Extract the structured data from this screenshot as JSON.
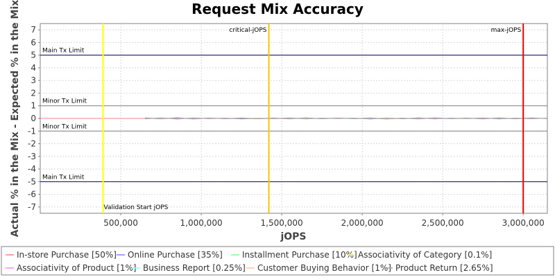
{
  "chart_data": {
    "type": "line",
    "title": "Request Mix Accuracy",
    "xlabel": "jOPS",
    "ylabel": "Actual % in the Mix - Expected % in the Mix",
    "xlim": [
      0,
      3150000
    ],
    "ylim": [
      -7.5,
      7.5
    ],
    "x_ticks": [
      500000,
      1000000,
      1500000,
      2000000,
      2500000,
      3000000
    ],
    "x_tick_labels": [
      "500,000",
      "1,000,000",
      "1,500,000",
      "2,000,000",
      "2,500,000",
      "3,000,000"
    ],
    "y_ticks": [
      7,
      6,
      5,
      4,
      3,
      2,
      1,
      0,
      -1,
      -2,
      -3,
      -4,
      -5,
      -6,
      -7
    ],
    "y_tick_labels": [
      "7",
      "6",
      "5",
      "4",
      "3",
      "2",
      "1",
      "0",
      "-1",
      "-2",
      "-3",
      "-4",
      "-5",
      "-6",
      "-7"
    ],
    "grid": true,
    "legend_position": "bottom",
    "limit_lines": [
      {
        "label": "Main Tx Limit",
        "y": 5,
        "color": "#000066"
      },
      {
        "label": "Minor Tx Limit",
        "y": 1,
        "color": "#808080"
      },
      {
        "label": "Minor Tx Limit",
        "y": -1,
        "color": "#808080"
      },
      {
        "label": "Main Tx Limit",
        "y": -5,
        "color": "#000066"
      }
    ],
    "markers": [
      {
        "label": "Validation Start jOPS",
        "x": 390000,
        "color": "#ffff00",
        "label_pos": "bottom"
      },
      {
        "label": "critical-jOPS",
        "x": 1420000,
        "color": "#ffc000",
        "label_pos": "top"
      },
      {
        "label": "max-jOPS",
        "x": 3000000,
        "color": "#ee0000",
        "label_pos": "top"
      }
    ],
    "x": [
      650000,
      750000,
      850000,
      950000,
      1050000,
      1150000,
      1250000,
      1350000,
      1450000,
      1550000,
      1650000,
      1750000,
      1850000,
      1950000,
      2050000,
      2150000,
      2250000,
      2350000,
      2450000,
      2550000,
      2650000,
      2750000,
      2850000,
      2950000,
      3050000,
      3150000
    ],
    "series": [
      {
        "name": "In-store Purchase [50%]",
        "color": "#ff8080",
        "values": [
          0.05,
          -0.04,
          0.06,
          -0.05,
          0.03,
          -0.02,
          0.04,
          -0.03,
          0.02,
          -0.04,
          0.05,
          -0.03,
          0.03,
          -0.02,
          0.04,
          -0.05,
          0.03,
          -0.04,
          0.05,
          -0.03,
          0.02,
          -0.04,
          0.05,
          -0.03,
          0.04,
          -0.02
        ]
      },
      {
        "name": "Online Purchase [35%]",
        "color": "#8080ff",
        "values": [
          -0.04,
          0.05,
          -0.05,
          0.04,
          -0.03,
          0.03,
          -0.04,
          0.02,
          -0.03,
          0.04,
          -0.04,
          0.03,
          -0.02,
          0.03,
          -0.05,
          0.04,
          -0.03,
          0.05,
          -0.04,
          0.02,
          -0.03,
          0.04,
          -0.04,
          0.03,
          -0.03,
          0.02
        ]
      },
      {
        "name": "Installment Purchase [10%]",
        "color": "#80ff80",
        "values": [
          0.02,
          -0.01,
          0.01,
          -0.02,
          0.01,
          0.0,
          -0.01,
          0.02,
          -0.01,
          0.01,
          -0.02,
          0.01,
          0.0,
          0.01,
          -0.01,
          0.02,
          -0.01,
          0.0,
          0.01,
          -0.02,
          0.01,
          -0.01,
          0.02,
          -0.01,
          0.0,
          0.01
        ]
      },
      {
        "name": "Associativity of Category [0.1%]",
        "color": "#ffff80",
        "values": [
          0.0,
          0.0,
          0.01,
          0.0,
          0.0,
          -0.01,
          0.0,
          0.0,
          0.0,
          0.01,
          0.0,
          0.0,
          -0.01,
          0.0,
          0.0,
          0.0,
          0.01,
          0.0,
          0.0,
          0.0,
          -0.01,
          0.0,
          0.0,
          0.0,
          0.0,
          0.0
        ]
      },
      {
        "name": "Associativity of Product [1%]",
        "color": "#ff80ff",
        "values": [
          0.01,
          -0.01,
          0.0,
          0.01,
          -0.01,
          0.0,
          0.01,
          0.0,
          -0.01,
          0.0,
          0.01,
          -0.01,
          0.0,
          0.0,
          0.01,
          -0.01,
          0.0,
          0.01,
          0.0,
          -0.01,
          0.0,
          0.01,
          -0.01,
          0.0,
          0.01,
          0.0
        ]
      },
      {
        "name": "Business Report [0.25%]",
        "color": "#80ffff",
        "values": [
          0.0,
          0.01,
          0.0,
          -0.01,
          0.0,
          0.0,
          0.01,
          0.0,
          0.0,
          -0.01,
          0.0,
          0.01,
          0.0,
          0.0,
          -0.01,
          0.0,
          0.0,
          0.01,
          0.0,
          0.0,
          -0.01,
          0.0,
          0.01,
          0.0,
          0.0,
          0.0
        ]
      },
      {
        "name": "Customer Buying Behavior [1%]",
        "color": "#ffc0a0",
        "values": [
          -0.01,
          0.01,
          0.0,
          0.0,
          0.01,
          -0.01,
          0.0,
          0.01,
          0.0,
          -0.01,
          0.0,
          0.0,
          0.01,
          -0.01,
          0.0,
          0.0,
          0.01,
          0.0,
          -0.01,
          0.0,
          0.01,
          0.0,
          0.0,
          -0.01,
          0.0,
          0.01
        ]
      },
      {
        "name": "Product Return [2.65%]",
        "color": "#a0a0a0",
        "values": [
          0.02,
          -0.03,
          0.02,
          -0.02,
          0.03,
          -0.02,
          0.01,
          -0.03,
          0.02,
          -0.01,
          0.02,
          -0.02,
          0.03,
          -0.02,
          0.02,
          -0.03,
          0.01,
          -0.02,
          0.03,
          -0.01,
          0.02,
          -0.02,
          0.02,
          -0.03,
          0.02,
          -0.01
        ]
      }
    ]
  }
}
